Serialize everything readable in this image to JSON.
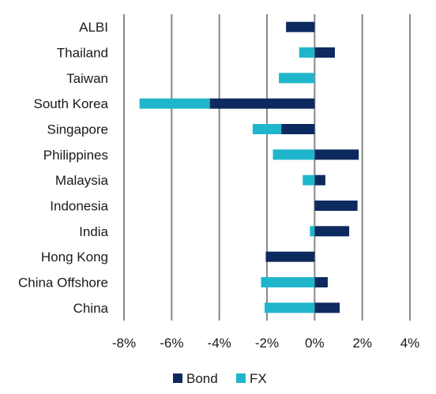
{
  "chart_data": {
    "type": "bar",
    "orientation": "horizontal",
    "stacked": true,
    "title": "",
    "xlabel": "",
    "ylabel": "",
    "xlim": [
      -8,
      4
    ],
    "x_ticks": [
      "-8%",
      "-6%",
      "-4%",
      "-2%",
      "0%",
      "2%",
      "4%"
    ],
    "x_tick_values": [
      -8,
      -6,
      -4,
      -2,
      0,
      2,
      4
    ],
    "grid": "vertical",
    "legend_position": "bottom",
    "categories": [
      "ALBI",
      "Thailand",
      "Taiwan",
      "South Korea",
      "Singapore",
      "Philippines",
      "Malaysia",
      "Indonesia",
      "India",
      "Hong Kong",
      "China Offshore",
      "China"
    ],
    "series": [
      {
        "name": "Bond",
        "color": "#0d2a5e",
        "values": [
          -1.2,
          0.85,
          0.0,
          -4.4,
          -1.4,
          1.85,
          0.45,
          1.8,
          1.45,
          -2.05,
          0.55,
          1.05
        ]
      },
      {
        "name": "FX",
        "color": "#1fb6cc",
        "values": [
          0.0,
          -0.65,
          -1.5,
          -2.95,
          -1.2,
          -1.75,
          -0.5,
          0.0,
          -0.2,
          0.0,
          -2.25,
          -2.1
        ]
      }
    ]
  }
}
